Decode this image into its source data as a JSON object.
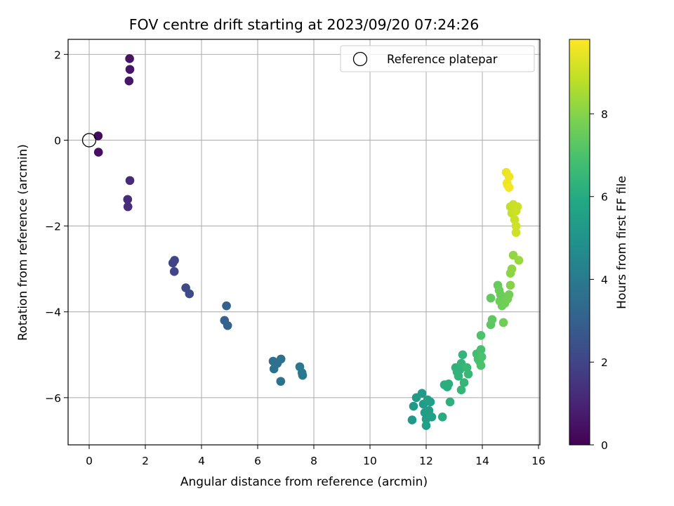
{
  "chart_data": {
    "type": "scatter",
    "title": "FOV centre drift starting at 2023/09/20 07:24:26",
    "xlabel": "Angular distance from reference (arcmin)",
    "ylabel": "Rotation from reference (arcmin)",
    "xlim": [
      -0.75,
      16.05
    ],
    "ylim": [
      -7.1,
      2.35
    ],
    "xticks": [
      0,
      2,
      4,
      6,
      8,
      10,
      12,
      14,
      16
    ],
    "yticks": [
      2,
      0,
      -2,
      -4,
      -6
    ],
    "grid": true,
    "colormap": "viridis",
    "colorbar": {
      "label": "Hours from first FF file",
      "range": [
        0,
        9.8
      ],
      "ticks": [
        0,
        2,
        4,
        6,
        8
      ]
    },
    "legend": {
      "placement": "top-right",
      "entries": [
        {
          "label": "Reference platepar",
          "marker": "open-circle"
        }
      ]
    },
    "reference_point": [
      0,
      0
    ],
    "points": [
      [
        0.32,
        0.1,
        0.3
      ],
      [
        0.33,
        -0.28,
        0.4
      ],
      [
        1.44,
        1.9,
        0.5
      ],
      [
        1.45,
        1.65,
        0.55
      ],
      [
        1.42,
        1.38,
        0.6
      ],
      [
        1.45,
        -0.94,
        1.2
      ],
      [
        1.37,
        -1.38,
        1.25
      ],
      [
        1.38,
        -1.55,
        1.3
      ],
      [
        3.04,
        -2.8,
        2.0
      ],
      [
        2.98,
        -2.86,
        2.0
      ],
      [
        3.03,
        -3.06,
        2.05
      ],
      [
        3.44,
        -3.44,
        2.2
      ],
      [
        3.57,
        -3.58,
        2.25
      ],
      [
        4.89,
        -3.86,
        3.0
      ],
      [
        4.82,
        -4.2,
        3.05
      ],
      [
        4.93,
        -4.32,
        3.1
      ],
      [
        6.55,
        -5.15,
        3.6
      ],
      [
        6.7,
        -5.2,
        3.6
      ],
      [
        6.83,
        -5.1,
        3.65
      ],
      [
        6.58,
        -5.33,
        3.65
      ],
      [
        6.82,
        -5.62,
        3.7
      ],
      [
        7.5,
        -5.28,
        3.9
      ],
      [
        7.58,
        -5.42,
        3.95
      ],
      [
        7.6,
        -5.48,
        3.95
      ],
      [
        11.5,
        -6.52,
        5.2
      ],
      [
        11.55,
        -6.2,
        5.25
      ],
      [
        11.65,
        -6.0,
        5.3
      ],
      [
        11.85,
        -5.9,
        5.3
      ],
      [
        11.9,
        -6.15,
        5.35
      ],
      [
        11.95,
        -6.35,
        5.4
      ],
      [
        12.0,
        -6.5,
        5.45
      ],
      [
        12.0,
        -6.65,
        5.5
      ],
      [
        12.1,
        -6.3,
        5.45
      ],
      [
        12.15,
        -6.1,
        5.5
      ],
      [
        12.05,
        -6.05,
        5.5
      ],
      [
        12.2,
        -6.45,
        5.55
      ],
      [
        12.58,
        -6.45,
        6.0
      ],
      [
        12.65,
        -5.7,
        6.1
      ],
      [
        12.75,
        -5.75,
        6.1
      ],
      [
        12.8,
        -5.68,
        6.15
      ],
      [
        12.85,
        -6.1,
        6.2
      ],
      [
        13.05,
        -5.3,
        6.3
      ],
      [
        13.1,
        -5.4,
        6.3
      ],
      [
        13.15,
        -5.5,
        6.35
      ],
      [
        13.2,
        -5.35,
        6.35
      ],
      [
        13.25,
        -5.2,
        6.4
      ],
      [
        13.3,
        -5.0,
        6.4
      ],
      [
        13.25,
        -5.82,
        6.45
      ],
      [
        13.35,
        -5.65,
        6.45
      ],
      [
        13.45,
        -5.3,
        6.5
      ],
      [
        13.5,
        -5.45,
        6.5
      ],
      [
        13.8,
        -4.98,
        6.8
      ],
      [
        13.85,
        -5.1,
        6.85
      ],
      [
        13.9,
        -5.15,
        6.9
      ],
      [
        13.95,
        -4.88,
        6.9
      ],
      [
        13.98,
        -5.05,
        6.95
      ],
      [
        13.95,
        -5.25,
        6.95
      ],
      [
        13.95,
        -4.55,
        7.0
      ],
      [
        14.3,
        -4.3,
        7.3
      ],
      [
        14.35,
        -4.18,
        7.35
      ],
      [
        14.3,
        -3.68,
        7.4
      ],
      [
        14.55,
        -3.38,
        7.5
      ],
      [
        14.6,
        -3.5,
        7.55
      ],
      [
        14.65,
        -3.6,
        7.55
      ],
      [
        14.62,
        -3.75,
        7.6
      ],
      [
        14.7,
        -3.86,
        7.6
      ],
      [
        14.8,
        -3.8,
        7.65
      ],
      [
        14.75,
        -4.25,
        7.65
      ],
      [
        14.9,
        -3.7,
        7.7
      ],
      [
        14.95,
        -3.6,
        7.7
      ],
      [
        15.0,
        -3.38,
        8.0
      ],
      [
        15.0,
        -3.1,
        8.1
      ],
      [
        15.05,
        -3.0,
        8.15
      ],
      [
        15.1,
        -2.68,
        8.2
      ],
      [
        15.3,
        -2.8,
        8.3
      ],
      [
        15.0,
        -1.55,
        8.9
      ],
      [
        15.05,
        -1.7,
        8.95
      ],
      [
        15.1,
        -1.5,
        9.0
      ],
      [
        15.15,
        -1.85,
        9.0
      ],
      [
        15.2,
        -1.65,
        9.05
      ],
      [
        15.25,
        -1.55,
        9.05
      ],
      [
        15.2,
        -2.0,
        9.1
      ],
      [
        15.2,
        -2.15,
        9.1
      ],
      [
        14.85,
        -0.75,
        9.5
      ],
      [
        14.95,
        -0.85,
        9.55
      ],
      [
        14.88,
        -1.0,
        9.6
      ],
      [
        14.9,
        -1.05,
        9.6
      ],
      [
        14.95,
        -1.1,
        9.65
      ]
    ]
  }
}
